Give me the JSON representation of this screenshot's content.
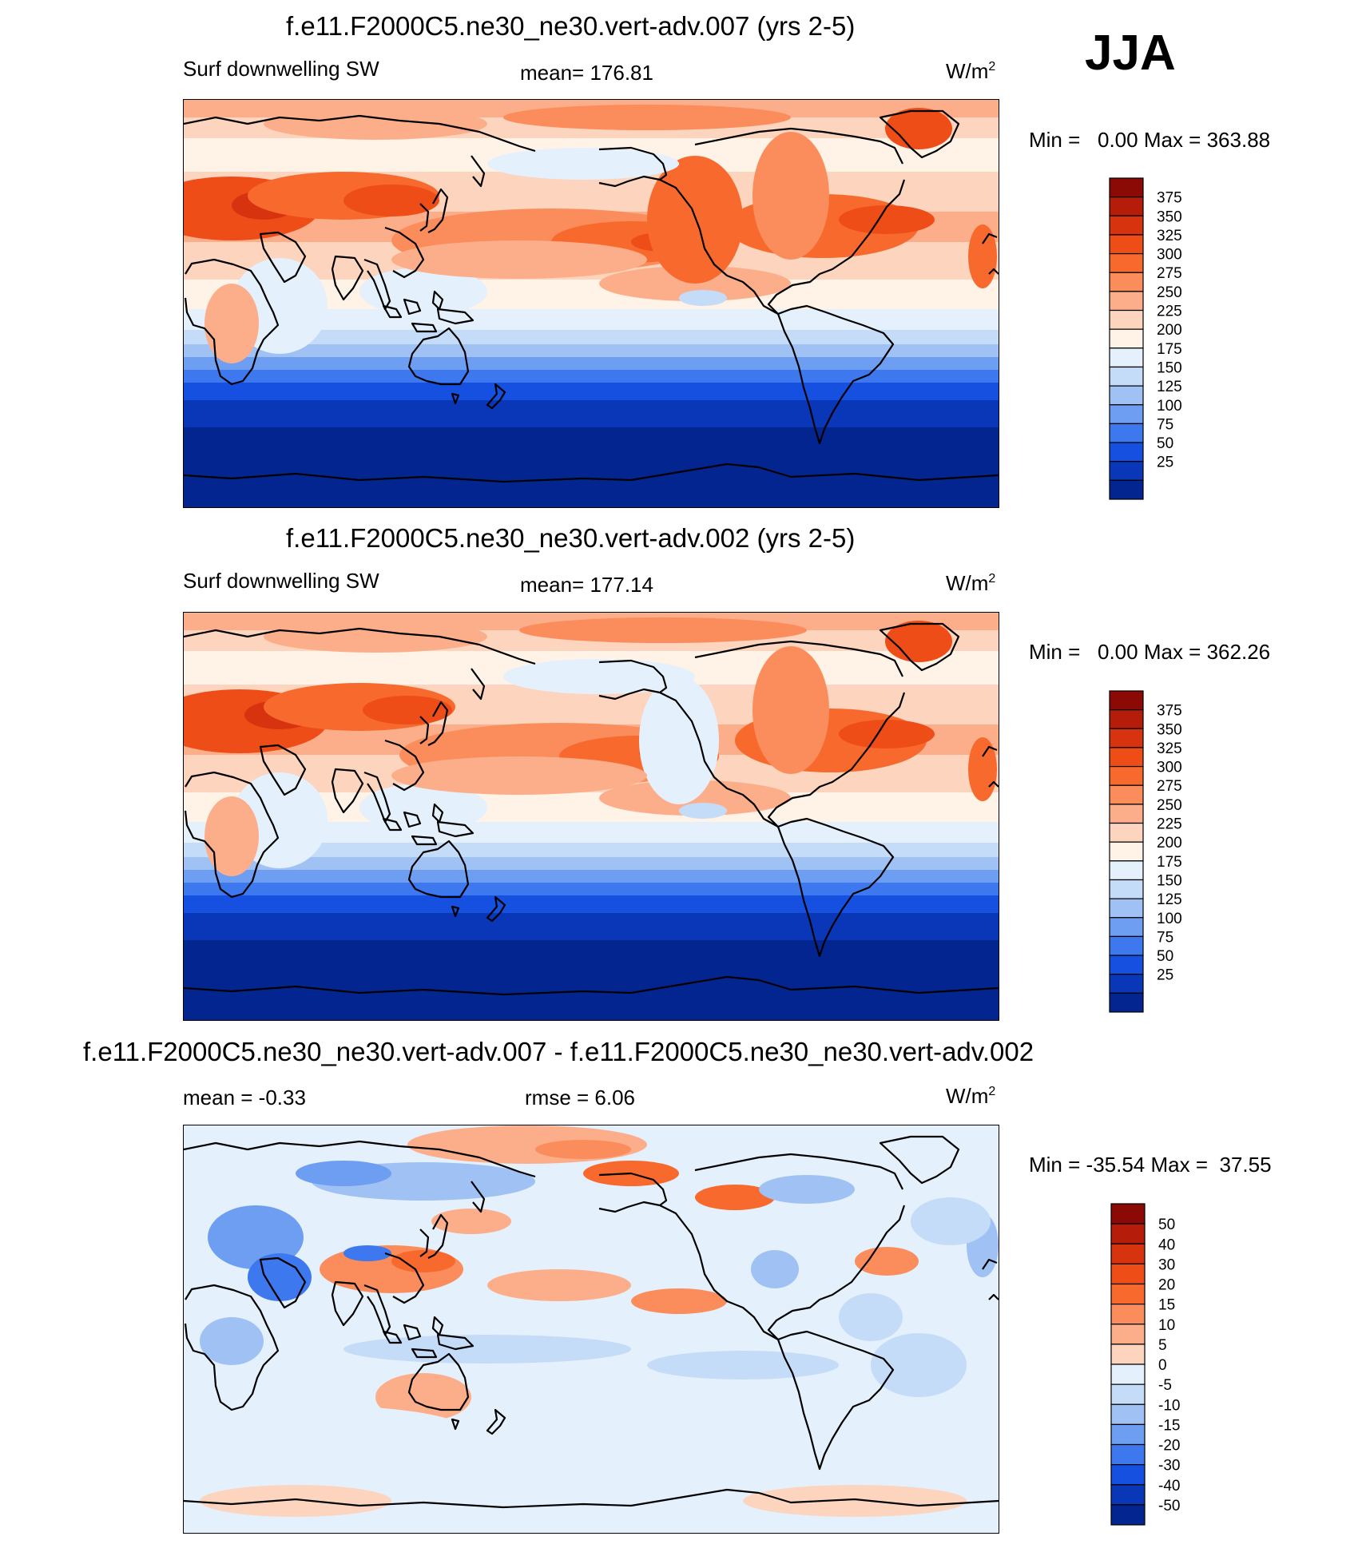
{
  "season": "JJA",
  "panels": [
    {
      "title": "f.e11.F2000C5.ne30_ne30.vert-adv.007 (yrs 2-5)",
      "left_label": "Surf downwelling SW",
      "center_label": "mean= 176.81",
      "units": "W/m",
      "units_sup": "2",
      "min_label": "Min =",
      "min_value": "0.00",
      "max_label": "Max =",
      "max_value": "363.88",
      "colorbar": {
        "ticks": [
          "375",
          "350",
          "325",
          "300",
          "275",
          "250",
          "225",
          "200",
          "175",
          "150",
          "125",
          "100",
          "75",
          "50",
          "25"
        ],
        "colors": [
          "#8b0a05",
          "#b51d0a",
          "#d8330f",
          "#ef4d17",
          "#f7692c",
          "#fb8c5b",
          "#fcae8b",
          "#fdd4bd",
          "#fff2e6",
          "#e4f0fb",
          "#c4dcf7",
          "#9fc1f4",
          "#6d9ef2",
          "#3d78ef",
          "#1550e0",
          "#0a36b8",
          "#032590"
        ]
      }
    },
    {
      "title": "f.e11.F2000C5.ne30_ne30.vert-adv.002 (yrs 2-5)",
      "left_label": "Surf downwelling SW",
      "center_label": "mean= 177.14",
      "units": "W/m",
      "units_sup": "2",
      "min_label": "Min =",
      "min_value": "0.00",
      "max_label": "Max =",
      "max_value": "362.26",
      "colorbar": {
        "ticks": [
          "375",
          "350",
          "325",
          "300",
          "275",
          "250",
          "225",
          "200",
          "175",
          "150",
          "125",
          "100",
          "75",
          "50",
          "25"
        ],
        "colors": [
          "#8b0a05",
          "#b51d0a",
          "#d8330f",
          "#ef4d17",
          "#f7692c",
          "#fb8c5b",
          "#fcae8b",
          "#fdd4bd",
          "#fff2e6",
          "#e4f0fb",
          "#c4dcf7",
          "#9fc1f4",
          "#6d9ef2",
          "#3d78ef",
          "#1550e0",
          "#0a36b8",
          "#032590"
        ]
      }
    },
    {
      "title": "f.e11.F2000C5.ne30_ne30.vert-adv.007 - f.e11.F2000C5.ne30_ne30.vert-adv.002",
      "left_label": "mean =  -0.33",
      "center_label": "rmse =   6.06",
      "units": "W/m",
      "units_sup": "2",
      "min_label": "Min =",
      "min_value": "-35.54",
      "max_label": "Max =",
      "max_value": "37.55",
      "colorbar": {
        "ticks": [
          "50",
          "40",
          "30",
          "20",
          "15",
          "10",
          "5",
          "0",
          "-5",
          "-10",
          "-15",
          "-20",
          "-30",
          "-40",
          "-50"
        ],
        "colors": [
          "#8b0a05",
          "#b51d0a",
          "#d8330f",
          "#ef4d17",
          "#f7692c",
          "#fb8c5b",
          "#fcae8b",
          "#fdd4bd",
          "#e4f0fb",
          "#c4dcf7",
          "#9fc1f4",
          "#6d9ef2",
          "#3d78ef",
          "#1550e0",
          "#0a36b8",
          "#032590"
        ]
      }
    }
  ]
}
